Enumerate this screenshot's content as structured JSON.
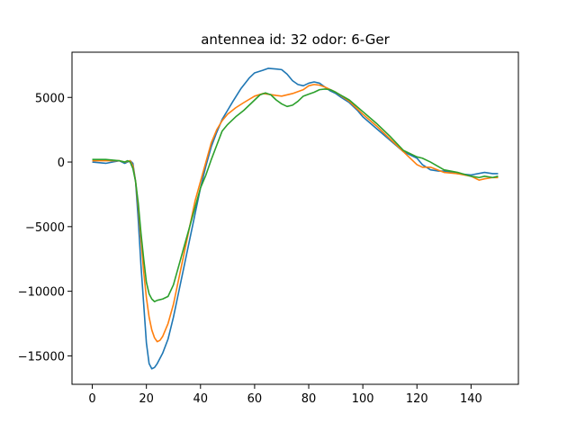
{
  "chart_data": {
    "type": "line",
    "title": "antennea id: 32    odor: 6-Ger",
    "xlabel": "",
    "ylabel": "",
    "xlim": [
      -7.5,
      157.5
    ],
    "ylim": [
      -17200,
      8500
    ],
    "xticks": [
      0,
      20,
      40,
      60,
      80,
      100,
      120,
      140
    ],
    "yticks": [
      -15000,
      -10000,
      -5000,
      0,
      5000
    ],
    "grid": false,
    "legend": "none",
    "series": [
      {
        "color": "#1f77b4",
        "x": [
          0,
          5,
          10,
          12,
          13,
          14,
          15,
          16,
          17,
          18,
          19,
          20,
          21,
          22,
          23,
          24,
          26,
          28,
          30,
          32,
          34,
          36,
          38,
          40,
          42,
          44,
          46,
          48,
          50,
          52,
          55,
          58,
          60,
          63,
          65,
          68,
          70,
          72,
          74,
          76,
          78,
          80,
          82,
          84,
          86,
          88,
          90,
          92,
          95,
          98,
          100,
          105,
          110,
          115,
          118,
          120,
          122,
          125,
          128,
          130,
          135,
          140,
          145,
          148,
          150
        ],
        "y": [
          0,
          -100,
          100,
          -100,
          0,
          100,
          -100,
          -1500,
          -4500,
          -8000,
          -11000,
          -14000,
          -15600,
          -16000,
          -15900,
          -15600,
          -14800,
          -13700,
          -12000,
          -10000,
          -8000,
          -6000,
          -4000,
          -2000,
          -300,
          1200,
          2300,
          3300,
          4000,
          4700,
          5700,
          6500,
          6900,
          7100,
          7250,
          7200,
          7150,
          6800,
          6300,
          6000,
          5900,
          6100,
          6200,
          6100,
          5800,
          5500,
          5300,
          5000,
          4600,
          4000,
          3500,
          2600,
          1700,
          800,
          500,
          300,
          -200,
          -600,
          -700,
          -700,
          -900,
          -1000,
          -800,
          -900,
          -900
        ]
      },
      {
        "color": "#ff7f0e",
        "x": [
          0,
          5,
          10,
          12,
          13,
          14,
          15,
          16,
          17,
          18,
          19,
          20,
          21,
          22,
          23,
          24,
          25,
          26,
          28,
          30,
          32,
          34,
          36,
          38,
          40,
          42,
          44,
          46,
          48,
          50,
          53,
          56,
          60,
          63,
          65,
          68,
          70,
          74,
          78,
          80,
          82,
          84,
          86,
          88,
          90,
          95,
          100,
          105,
          110,
          115,
          120,
          122,
          125,
          130,
          135,
          140,
          143,
          145,
          148,
          150
        ],
        "y": [
          100,
          100,
          100,
          0,
          50,
          100,
          -300,
          -1500,
          -3500,
          -6000,
          -8500,
          -10500,
          -12000,
          -13000,
          -13600,
          -13900,
          -13800,
          -13500,
          -12500,
          -11000,
          -9000,
          -7000,
          -5000,
          -3000,
          -1500,
          0,
          1500,
          2500,
          3200,
          3700,
          4200,
          4600,
          5100,
          5300,
          5250,
          5150,
          5100,
          5300,
          5600,
          5900,
          6000,
          5950,
          5800,
          5600,
          5400,
          4700,
          3700,
          2800,
          1800,
          800,
          -200,
          -400,
          -400,
          -800,
          -900,
          -1100,
          -1400,
          -1300,
          -1200,
          -1200
        ]
      },
      {
        "color": "#2ca02c",
        "x": [
          0,
          5,
          10,
          12,
          13,
          14,
          15,
          16,
          17,
          18,
          19,
          20,
          21,
          22,
          23,
          24,
          26,
          28,
          30,
          32,
          34,
          36,
          38,
          40,
          42,
          44,
          46,
          48,
          50,
          53,
          56,
          60,
          62,
          64,
          66,
          68,
          70,
          72,
          74,
          76,
          78,
          80,
          82,
          84,
          86,
          88,
          90,
          95,
          100,
          105,
          110,
          115,
          120,
          122,
          125,
          130,
          135,
          140,
          143,
          145,
          148,
          150
        ],
        "y": [
          200,
          200,
          100,
          0,
          100,
          0,
          -500,
          -1500,
          -3200,
          -5500,
          -7500,
          -9300,
          -10200,
          -10600,
          -10800,
          -10700,
          -10600,
          -10400,
          -9500,
          -8000,
          -6500,
          -5000,
          -3500,
          -2000,
          -1000,
          200,
          1300,
          2400,
          2900,
          3500,
          4000,
          4800,
          5200,
          5350,
          5200,
          4800,
          4500,
          4300,
          4400,
          4700,
          5100,
          5250,
          5400,
          5600,
          5650,
          5600,
          5400,
          4800,
          3900,
          3000,
          2000,
          900,
          400,
          300,
          0,
          -600,
          -800,
          -1100,
          -1200,
          -1100,
          -1200,
          -1100
        ]
      }
    ]
  }
}
